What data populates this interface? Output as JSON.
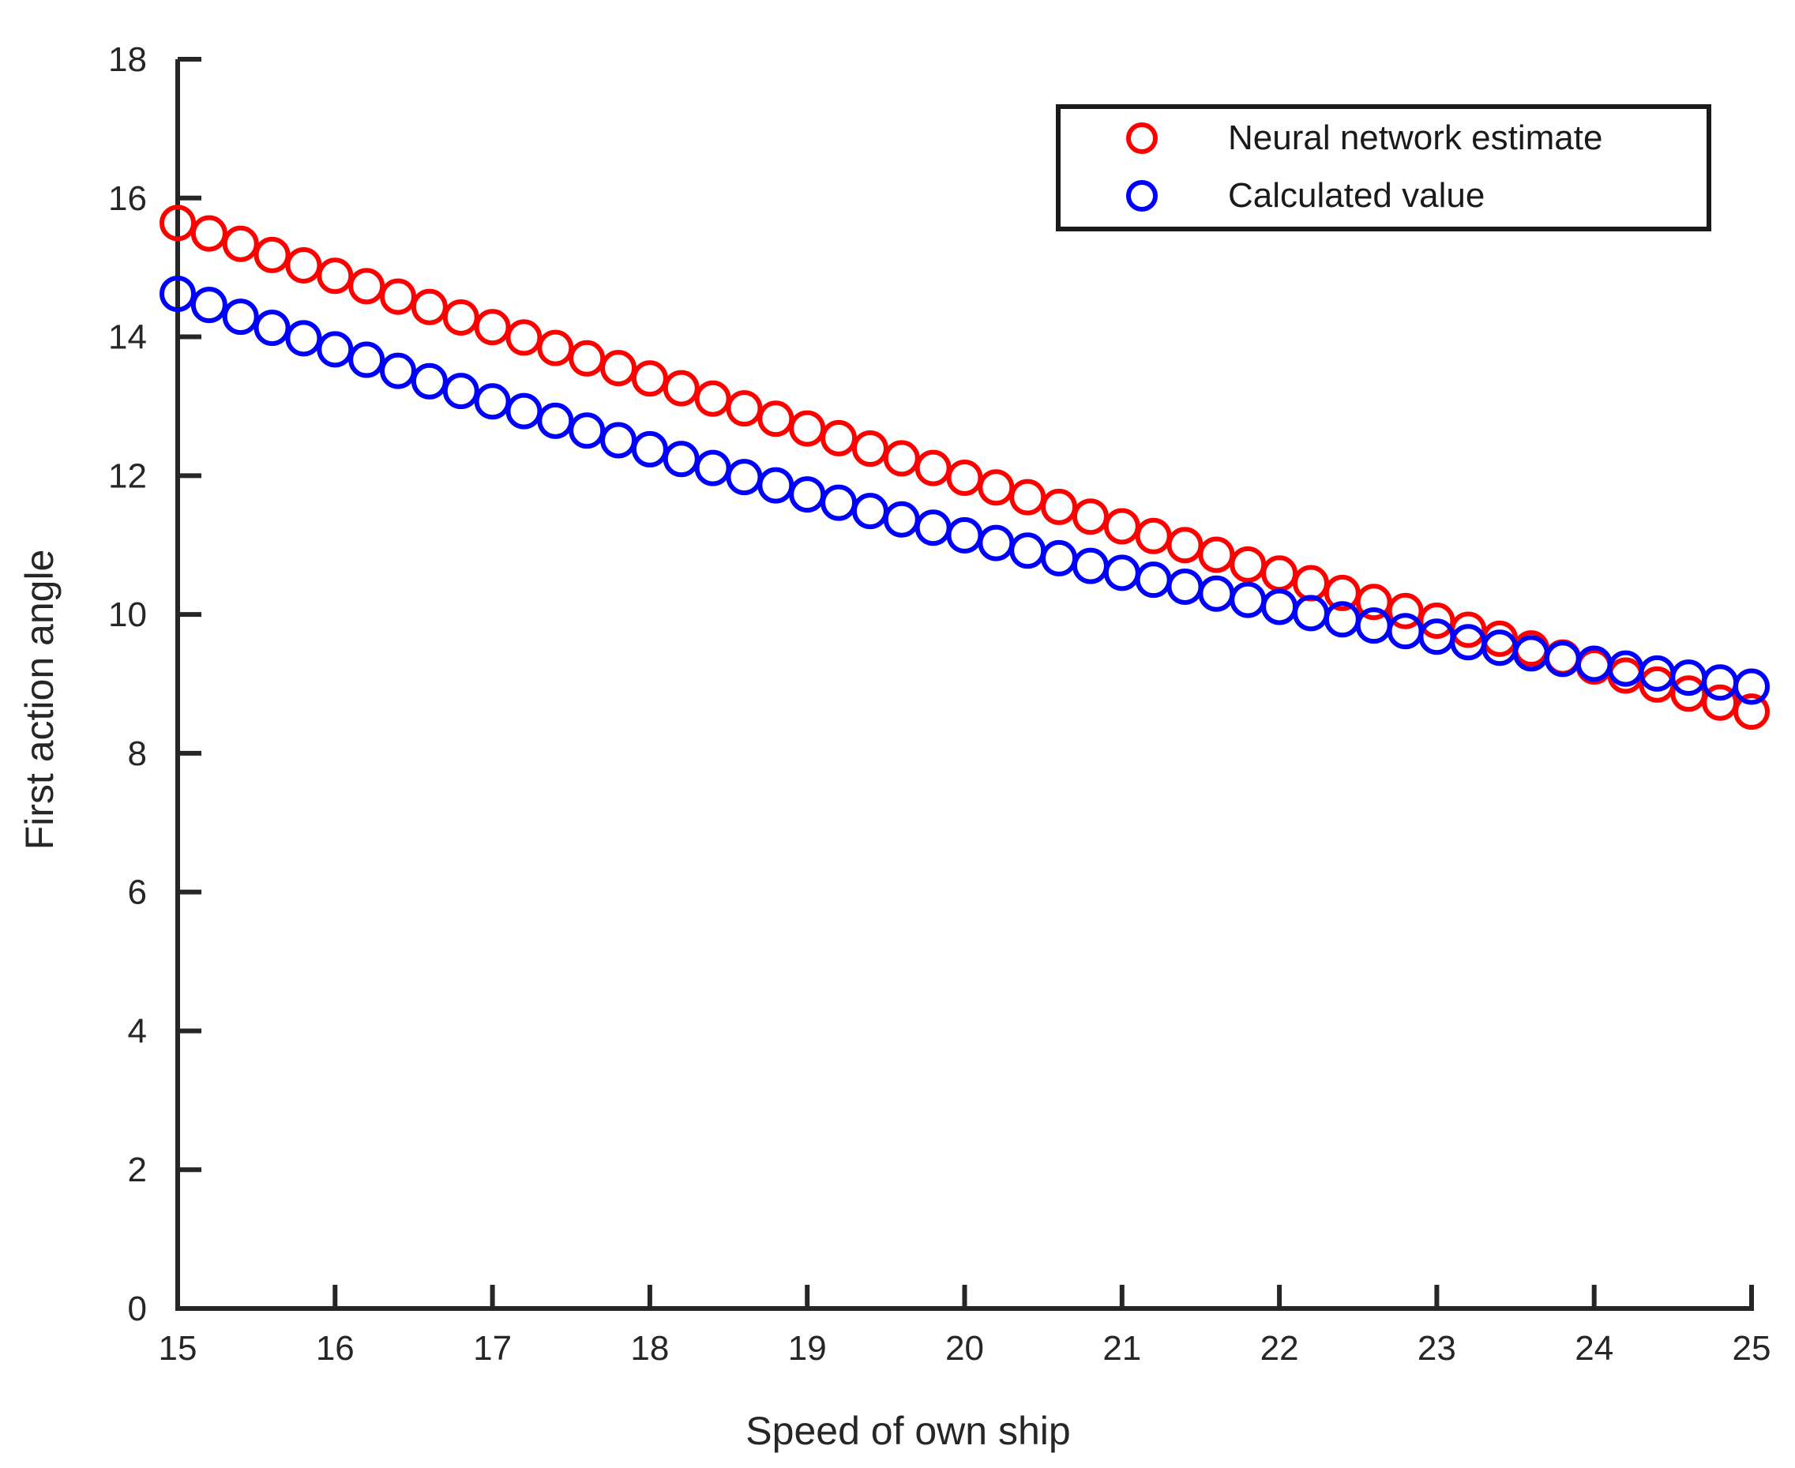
{
  "chart_data": {
    "type": "scatter",
    "title": "",
    "xlabel": "Speed of own ship",
    "ylabel": "First action angle",
    "xlim": [
      15,
      25
    ],
    "ylim": [
      0,
      18
    ],
    "xticks": [
      15,
      16,
      17,
      18,
      19,
      20,
      21,
      22,
      23,
      24,
      25
    ],
    "yticks": [
      0,
      2,
      4,
      6,
      8,
      10,
      12,
      14,
      16,
      18
    ],
    "grid": false,
    "legend_position": "top-right",
    "marker": "open-circle",
    "axis_color": "#262626",
    "x": [
      15,
      15.2,
      15.4,
      15.6,
      15.8,
      16,
      16.2,
      16.4,
      16.6,
      16.8,
      17,
      17.2,
      17.4,
      17.6,
      17.8,
      18,
      18.2,
      18.4,
      18.6,
      18.8,
      19,
      19.2,
      19.4,
      19.6,
      19.8,
      20,
      20.2,
      20.4,
      20.6,
      20.8,
      21,
      21.2,
      21.4,
      21.6,
      21.8,
      22,
      22.2,
      22.4,
      22.6,
      22.8,
      23,
      23.2,
      23.4,
      23.6,
      23.8,
      24,
      24.2,
      24.4,
      24.6,
      24.8,
      25
    ],
    "series": [
      {
        "name": "Neural network estimate",
        "color": "#ff0000",
        "values": [
          15.64,
          15.49,
          15.34,
          15.18,
          15.03,
          14.88,
          14.73,
          14.58,
          14.43,
          14.28,
          14.14,
          13.99,
          13.84,
          13.69,
          13.55,
          13.4,
          13.26,
          13.11,
          12.97,
          12.82,
          12.68,
          12.54,
          12.39,
          12.25,
          12.11,
          11.97,
          11.83,
          11.69,
          11.55,
          11.41,
          11.27,
          11.13,
          11.0,
          10.86,
          10.72,
          10.59,
          10.45,
          10.31,
          10.18,
          10.05,
          9.91,
          9.78,
          9.65,
          9.51,
          9.38,
          9.25,
          9.12,
          8.99,
          8.86,
          8.73,
          8.6
        ]
      },
      {
        "name": "Calculated value",
        "color": "#0000ff",
        "values": [
          14.62,
          14.46,
          14.29,
          14.13,
          13.98,
          13.82,
          13.67,
          13.51,
          13.36,
          13.22,
          13.07,
          12.93,
          12.79,
          12.65,
          12.51,
          12.38,
          12.24,
          12.11,
          11.98,
          11.86,
          11.73,
          11.61,
          11.49,
          11.37,
          11.25,
          11.14,
          11.03,
          10.92,
          10.81,
          10.7,
          10.6,
          10.5,
          10.4,
          10.3,
          10.21,
          10.11,
          10.02,
          9.93,
          9.84,
          9.76,
          9.68,
          9.6,
          9.52,
          9.44,
          9.36,
          9.29,
          9.22,
          9.15,
          9.09,
          9.02,
          8.96
        ]
      }
    ]
  }
}
